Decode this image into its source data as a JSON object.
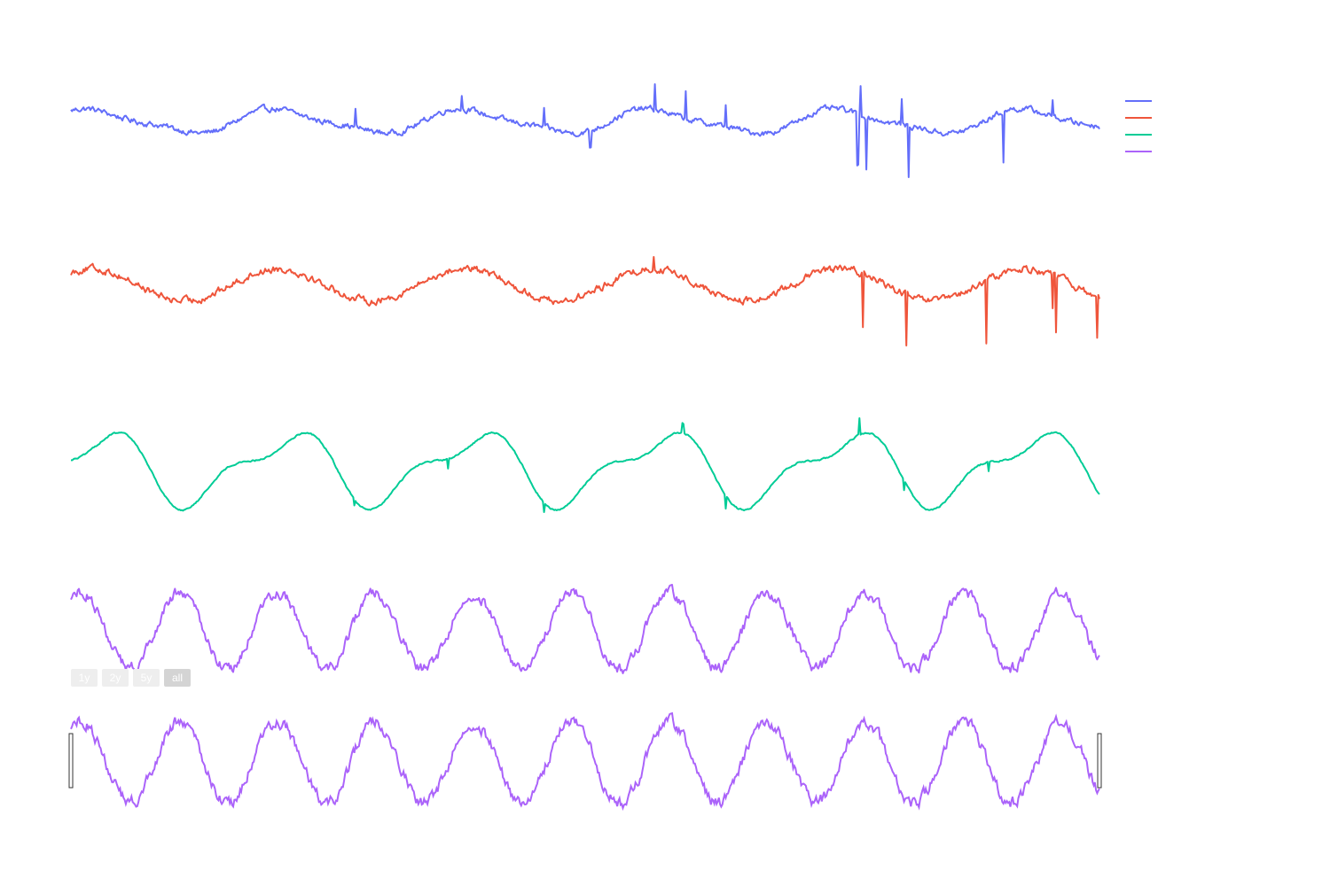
{
  "chart_data": {
    "type": "line",
    "title": "",
    "xlabel": "",
    "ylabel": "",
    "x_range": [
      0,
      1
    ],
    "grid": false,
    "legend_position": "top-right",
    "legend_entries": [
      "",
      "",
      "",
      ""
    ],
    "range_selector": {
      "buttons": [
        "1y",
        "2y",
        "5y",
        "all"
      ],
      "active": "all"
    },
    "range_slider": {
      "visible": true,
      "selected_range": [
        0,
        1
      ],
      "preview_series": 3
    },
    "series": [
      {
        "color": "#636efa",
        "baseline": 0,
        "components": [
          {
            "amplitude": 0.38,
            "cycles": 5.5,
            "phase": 0.8
          },
          {
            "amplitude": 0.1,
            "cycles": 11,
            "phase": 1.3
          }
        ],
        "noise": 0.08,
        "spikes": [
          {
            "x": 0.277,
            "value": 0.6
          },
          {
            "x": 0.38,
            "value": 0.5
          },
          {
            "x": 0.46,
            "value": 0.6
          },
          {
            "x": 0.505,
            "value": -0.6
          },
          {
            "x": 0.568,
            "value": 0.9
          },
          {
            "x": 0.598,
            "value": 0.9
          },
          {
            "x": 0.637,
            "value": 0.8
          },
          {
            "x": 0.765,
            "value": -1.8
          },
          {
            "x": 0.768,
            "value": 1.0
          },
          {
            "x": 0.773,
            "value": -1.7
          },
          {
            "x": 0.808,
            "value": 0.9
          },
          {
            "x": 0.815,
            "value": -1.8
          },
          {
            "x": 0.907,
            "value": -1.7
          },
          {
            "x": 0.955,
            "value": 0.6
          }
        ]
      },
      {
        "color": "#EF553B",
        "baseline": 0,
        "components": [
          {
            "amplitude": 0.55,
            "cycles": 5.5,
            "phase": 0.9
          }
        ],
        "noise": 0.1,
        "spikes": [
          {
            "x": 0.567,
            "value": 0.5
          },
          {
            "x": 0.77,
            "value": -1.9
          },
          {
            "x": 0.812,
            "value": -1.9
          },
          {
            "x": 0.89,
            "value": -2.2
          },
          {
            "x": 0.955,
            "value": -1.2
          },
          {
            "x": 0.958,
            "value": -1.9
          },
          {
            "x": 0.998,
            "value": -1.5
          }
        ]
      },
      {
        "color": "#00cc96",
        "baseline": 0,
        "components": [
          {
            "amplitude": 0.95,
            "cycles": 5.5,
            "phase": 0.6
          },
          {
            "amplitude": 0.42,
            "cycles": 11,
            "phase": 3.9
          }
        ],
        "noise": 0.02,
        "spikes": [
          {
            "x": 0.275,
            "value": -0.2
          },
          {
            "x": 0.367,
            "value": -0.3
          },
          {
            "x": 0.46,
            "value": -0.3
          },
          {
            "x": 0.595,
            "value": 0.3
          },
          {
            "x": 0.637,
            "value": -0.4
          },
          {
            "x": 0.767,
            "value": 0.5
          },
          {
            "x": 0.81,
            "value": -0.3
          },
          {
            "x": 0.892,
            "value": -0.3
          }
        ]
      },
      {
        "color": "#ab63fa",
        "baseline": 0,
        "components": [
          {
            "amplitude": 1.0,
            "cycles": 10.5,
            "phase": 0.9
          }
        ],
        "noise": 0.12,
        "spikes": []
      }
    ]
  }
}
